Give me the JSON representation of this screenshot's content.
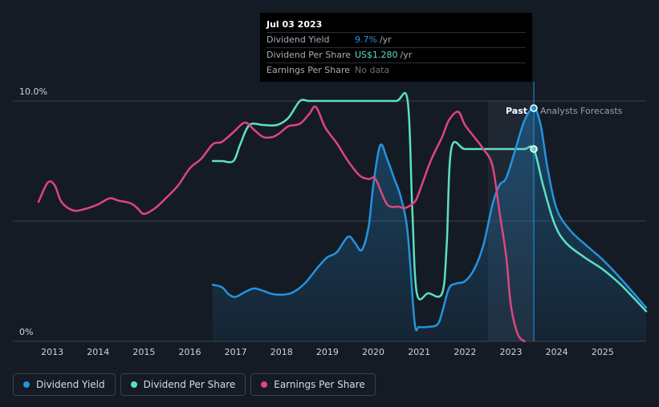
{
  "chart_data": {
    "type": "line",
    "y_axis": {
      "ticks": [
        "10.0%",
        "0%"
      ],
      "ylim": [
        0,
        10
      ]
    },
    "x_axis": {
      "ticks": [
        "2013",
        "2014",
        "2015",
        "2016",
        "2017",
        "2018",
        "2019",
        "2020",
        "2021",
        "2022",
        "2023",
        "2024",
        "2025"
      ],
      "xlim": [
        2012.7,
        2025.95
      ]
    },
    "markers": {
      "past_label": "Past",
      "forecast_label": "Analysts Forecasts",
      "past_start": 2022.5,
      "split_at": 2023.5
    },
    "series": [
      {
        "name": "Dividend Yield",
        "color": "#2394df",
        "fill": true,
        "points": [
          [
            2016.5,
            2.35
          ],
          [
            2016.7,
            2.25
          ],
          [
            2016.85,
            1.95
          ],
          [
            2017.0,
            1.85
          ],
          [
            2017.2,
            2.05
          ],
          [
            2017.4,
            2.2
          ],
          [
            2017.6,
            2.1
          ],
          [
            2017.85,
            1.95
          ],
          [
            2018.2,
            2.0
          ],
          [
            2018.5,
            2.4
          ],
          [
            2018.8,
            3.1
          ],
          [
            2019.0,
            3.5
          ],
          [
            2019.2,
            3.7
          ],
          [
            2019.45,
            4.35
          ],
          [
            2019.6,
            4.1
          ],
          [
            2019.75,
            3.8
          ],
          [
            2019.9,
            4.8
          ],
          [
            2020.0,
            6.5
          ],
          [
            2020.15,
            8.15
          ],
          [
            2020.3,
            7.6
          ],
          [
            2020.45,
            6.8
          ],
          [
            2020.6,
            6.0
          ],
          [
            2020.75,
            4.5
          ],
          [
            2020.9,
            0.8
          ],
          [
            2021.0,
            0.6
          ],
          [
            2021.2,
            0.6
          ],
          [
            2021.4,
            0.7
          ],
          [
            2021.5,
            1.2
          ],
          [
            2021.65,
            2.2
          ],
          [
            2021.8,
            2.4
          ],
          [
            2022.0,
            2.5
          ],
          [
            2022.2,
            3.0
          ],
          [
            2022.4,
            4.0
          ],
          [
            2022.6,
            5.7
          ],
          [
            2022.75,
            6.5
          ],
          [
            2022.9,
            6.8
          ],
          [
            2023.1,
            8.0
          ],
          [
            2023.3,
            9.2
          ],
          [
            2023.5,
            9.7
          ],
          [
            2023.65,
            9.0
          ],
          [
            2023.8,
            7.2
          ],
          [
            2024.0,
            5.5
          ],
          [
            2024.3,
            4.6
          ],
          [
            2024.7,
            3.9
          ],
          [
            2025.0,
            3.4
          ],
          [
            2025.4,
            2.6
          ],
          [
            2025.95,
            1.4
          ]
        ]
      },
      {
        "name": "Dividend Per Share",
        "color": "#5ce0c2",
        "fill": false,
        "points": [
          [
            2016.5,
            7.5
          ],
          [
            2016.7,
            7.5
          ],
          [
            2016.95,
            7.5
          ],
          [
            2017.1,
            8.2
          ],
          [
            2017.3,
            9.0
          ],
          [
            2017.6,
            9.0
          ],
          [
            2017.9,
            9.0
          ],
          [
            2018.15,
            9.3
          ],
          [
            2018.4,
            10.0
          ],
          [
            2018.6,
            10.0
          ],
          [
            2019.0,
            10.0
          ],
          [
            2019.5,
            10.0
          ],
          [
            2020.0,
            10.0
          ],
          [
            2020.5,
            10.0
          ],
          [
            2020.75,
            10.0
          ],
          [
            2020.85,
            5.5
          ],
          [
            2020.95,
            2.0
          ],
          [
            2021.2,
            2.0
          ],
          [
            2021.5,
            2.0
          ],
          [
            2021.6,
            4.0
          ],
          [
            2021.7,
            8.0
          ],
          [
            2022.0,
            8.0
          ],
          [
            2022.5,
            8.0
          ],
          [
            2023.0,
            8.0
          ],
          [
            2023.3,
            8.0
          ],
          [
            2023.5,
            8.0
          ],
          [
            2023.7,
            6.5
          ],
          [
            2023.95,
            4.9
          ],
          [
            2024.2,
            4.1
          ],
          [
            2024.6,
            3.5
          ],
          [
            2025.0,
            3.0
          ],
          [
            2025.4,
            2.35
          ],
          [
            2025.95,
            1.25
          ]
        ]
      },
      {
        "name": "Earnings Per Share",
        "color": "#e0457e",
        "fill": false,
        "points": [
          [
            2012.7,
            5.8
          ],
          [
            2012.9,
            6.6
          ],
          [
            2013.05,
            6.5
          ],
          [
            2013.2,
            5.8
          ],
          [
            2013.45,
            5.45
          ],
          [
            2013.7,
            5.5
          ],
          [
            2014.0,
            5.7
          ],
          [
            2014.25,
            5.95
          ],
          [
            2014.45,
            5.85
          ],
          [
            2014.7,
            5.75
          ],
          [
            2014.85,
            5.55
          ],
          [
            2015.0,
            5.3
          ],
          [
            2015.25,
            5.55
          ],
          [
            2015.5,
            6.0
          ],
          [
            2015.75,
            6.5
          ],
          [
            2016.0,
            7.2
          ],
          [
            2016.25,
            7.6
          ],
          [
            2016.5,
            8.2
          ],
          [
            2016.7,
            8.3
          ],
          [
            2016.95,
            8.7
          ],
          [
            2017.2,
            9.1
          ],
          [
            2017.4,
            8.8
          ],
          [
            2017.6,
            8.5
          ],
          [
            2017.8,
            8.5
          ],
          [
            2017.95,
            8.65
          ],
          [
            2018.15,
            8.95
          ],
          [
            2018.4,
            9.05
          ],
          [
            2018.6,
            9.45
          ],
          [
            2018.75,
            9.75
          ],
          [
            2018.95,
            8.9
          ],
          [
            2019.2,
            8.25
          ],
          [
            2019.45,
            7.5
          ],
          [
            2019.7,
            6.9
          ],
          [
            2019.9,
            6.75
          ],
          [
            2020.05,
            6.75
          ],
          [
            2020.3,
            5.7
          ],
          [
            2020.55,
            5.6
          ],
          [
            2020.7,
            5.55
          ],
          [
            2020.9,
            5.8
          ],
          [
            2021.0,
            6.2
          ],
          [
            2021.25,
            7.5
          ],
          [
            2021.5,
            8.5
          ],
          [
            2021.65,
            9.2
          ],
          [
            2021.85,
            9.55
          ],
          [
            2022.0,
            9.0
          ],
          [
            2022.2,
            8.5
          ],
          [
            2022.4,
            8.0
          ],
          [
            2022.6,
            7.3
          ],
          [
            2022.75,
            5.4
          ],
          [
            2022.9,
            3.5
          ],
          [
            2023.0,
            1.5
          ],
          [
            2023.15,
            0.3
          ],
          [
            2023.3,
            0.0
          ]
        ]
      }
    ],
    "tooltip_marker": {
      "x": 2023.5,
      "dividend_yield": 9.7,
      "dividend_per_share": 8.0
    }
  },
  "tooltip": {
    "date": "Jul 03 2023",
    "rows": [
      {
        "label": "Dividend Yield",
        "value": "9.7%",
        "unit": "/yr",
        "color": "#2394df"
      },
      {
        "label": "Dividend Per Share",
        "value": "US$1.280",
        "unit": "/yr",
        "color": "#5ce0c2"
      },
      {
        "label": "Earnings Per Share",
        "value": "No data",
        "unit": "",
        "color": "#6b717a"
      }
    ]
  },
  "legend": [
    {
      "label": "Dividend Yield",
      "color": "#2394df"
    },
    {
      "label": "Dividend Per Share",
      "color": "#5ce0c2"
    },
    {
      "label": "Earnings Per Share",
      "color": "#e0457e"
    }
  ]
}
